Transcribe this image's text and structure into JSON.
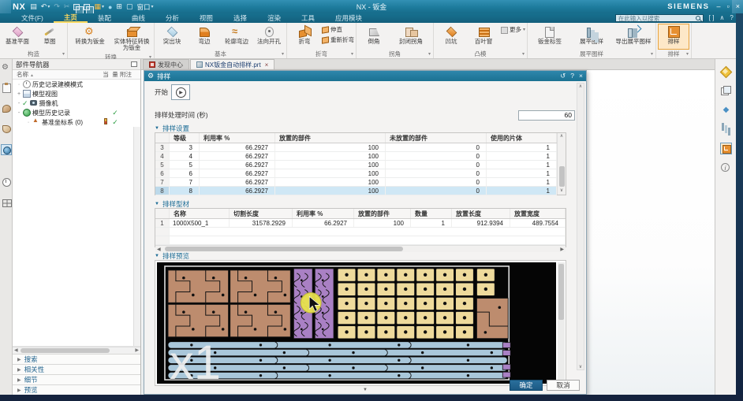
{
  "titlebar": {
    "app": "NX",
    "title": "NX - 钣金",
    "brand": "SIEMENS",
    "quick_icons": [
      {
        "name": "save-icon",
        "glyph": "▤"
      },
      {
        "name": "undo-icon",
        "glyph": "↶",
        "caret": true
      },
      {
        "name": "redo-icon",
        "glyph": "↷",
        "dim": true
      },
      {
        "name": "cut-icon",
        "glyph": "✂",
        "dim": true
      },
      {
        "name": "copy-icon",
        "shape": "copy"
      },
      {
        "name": "paste-icon",
        "shape": "copy"
      },
      {
        "name": "window-orange-icon",
        "glyph": "▦",
        "accent": true,
        "caret": true
      },
      {
        "name": "mic-icon",
        "glyph": "●",
        "blue": true
      },
      {
        "name": "touch-icon",
        "glyph": "⊞"
      },
      {
        "name": "layout-icon",
        "glyph": "▢"
      },
      {
        "name": "window-menu",
        "glyph": "窗口",
        "text": true,
        "caret": true
      }
    ],
    "window_controls": [
      {
        "name": "minimize-button",
        "glyph": "–"
      },
      {
        "name": "restore-button",
        "glyph": "▫"
      },
      {
        "name": "close-button",
        "glyph": "×"
      }
    ]
  },
  "menu": {
    "items": [
      "文件(F)",
      "主页",
      "装配",
      "曲线",
      "分析",
      "视图",
      "选择",
      "渲染",
      "工具",
      "应用模块"
    ],
    "active_index": 1,
    "search_placeholder": "在此输入以搜索",
    "right_icons": [
      {
        "name": "command-finder-icon",
        "glyph": "[ ]"
      },
      {
        "name": "minimize-ribbon-icon",
        "glyph": "∧"
      },
      {
        "name": "help-icon",
        "glyph": "?"
      },
      {
        "name": "alert-icon",
        "glyph": "!"
      }
    ]
  },
  "ribbon": {
    "groups": [
      {
        "label": "构造",
        "items": [
          {
            "label": "基准平面",
            "icon": "diamond-pink"
          },
          {
            "label": "草图",
            "icon": "pencil"
          }
        ]
      },
      {
        "label": "转换",
        "items": [
          {
            "label": "转换为钣金",
            "icon": "gear-orange",
            "wide": true
          },
          {
            "label": "实体特征转换为钣金",
            "icon": "cube-orange",
            "wide": true
          }
        ]
      },
      {
        "label": "基本",
        "items": [
          {
            "label": "突出块",
            "icon": "diamond-blue"
          },
          {
            "label": "弯边",
            "icon": "flange"
          },
          {
            "label": "轮廓弯边",
            "icon": "wave"
          },
          {
            "label": "法向开孔",
            "icon": "hole"
          }
        ]
      },
      {
        "label": "折弯",
        "items": [
          {
            "label": "折弯",
            "icon": "bend"
          },
          {
            "stack": [
              {
                "label": "伸直",
                "icon": "mini-orange"
              },
              {
                "label": "重新折弯",
                "icon": "mini-orange"
              }
            ]
          }
        ]
      },
      {
        "label": "拐角",
        "items": [
          {
            "label": "倒角",
            "icon": "chamfer"
          },
          {
            "label": "封闭拐角",
            "icon": "closecorner",
            "wide": true
          }
        ]
      },
      {
        "label": "凸模",
        "items": [
          {
            "label": "凹坑",
            "icon": "dimple"
          },
          {
            "label": "百叶窗",
            "icon": "louver"
          },
          {
            "stack": [
              {
                "label": "更多",
                "icon": "mini-more",
                "caret": true
              }
            ]
          }
        ]
      },
      {
        "label": "展平图样",
        "items": [
          {
            "label": "钣金标签",
            "icon": "tag",
            "wide": true
          },
          {
            "label": "展平图样",
            "icon": "flat",
            "wide": true
          },
          {
            "label": "导出展平图样",
            "icon": "export",
            "wide": true
          }
        ]
      },
      {
        "label": "排样",
        "items": [
          {
            "label": "排样",
            "icon": "nest",
            "active": true
          }
        ]
      }
    ]
  },
  "left_strip": {
    "icons": [
      {
        "name": "gear-icon",
        "cls": "ls-gear"
      },
      {
        "name": "clipboard-icon",
        "cls": "ls-clip"
      },
      {
        "name": "roles-icon",
        "cls": "ls-shell"
      },
      {
        "name": "part-shell-icon",
        "cls": "ls-shell2"
      },
      {
        "name": "web-browser-icon",
        "cls": "ls-globe",
        "active": true
      },
      {
        "name": "history-clock-icon",
        "cls": "ls-clock"
      },
      {
        "name": "template-grid-icon",
        "cls": "ls-grid"
      }
    ]
  },
  "navigator": {
    "title": "部件导航器",
    "columns": [
      "名称",
      "当",
      "量",
      "附注"
    ],
    "rows": [
      {
        "exp": "",
        "icon": "clock",
        "label": "历史记录建模模式",
        "c1": "",
        "c2": ""
      },
      {
        "exp": "+",
        "icon": "views",
        "label": "模型视图",
        "c1": "",
        "c2": ""
      },
      {
        "exp": "-",
        "pre": "check",
        "icon": "camera",
        "label": "摄像机",
        "c1": "",
        "c2": ""
      },
      {
        "exp": "-",
        "icon": "history",
        "label": "模型历史记录",
        "c1": "",
        "c2": "check"
      },
      {
        "exp": "",
        "indent": 1,
        "icon": "csys",
        "label": "基准坐标系 (0)",
        "c1": "badge",
        "c2": "check"
      }
    ],
    "sections": [
      "搜索",
      "相关性",
      "细节",
      "预览"
    ]
  },
  "tabs": [
    {
      "label": "发现中心",
      "icon": "discover",
      "active": false
    },
    {
      "label": "NX钣金自动排样.prt",
      "icon": "part",
      "active": true,
      "close": "×"
    }
  ],
  "dialog": {
    "title": "排样",
    "header_icons": [
      {
        "name": "reset-button",
        "glyph": "↺"
      },
      {
        "name": "help-button",
        "glyph": "?"
      },
      {
        "name": "close-button",
        "glyph": "×"
      }
    ],
    "start_label": "开始",
    "time_label": "排样处理时间 (秒)",
    "time_value": "60",
    "settings": {
      "title": "排样设置",
      "columns": [
        "等级",
        "利用率 %",
        "放置的部件",
        "未放置的部件",
        "使用的片体"
      ],
      "rows": [
        {
          "n": "3",
          "v": [
            "3",
            "66.2927",
            "100",
            "0",
            "1"
          ]
        },
        {
          "n": "4",
          "v": [
            "4",
            "66.2927",
            "100",
            "0",
            "1"
          ]
        },
        {
          "n": "5",
          "v": [
            "5",
            "66.2927",
            "100",
            "0",
            "1"
          ]
        },
        {
          "n": "6",
          "v": [
            "6",
            "66.2927",
            "100",
            "0",
            "1"
          ]
        },
        {
          "n": "7",
          "v": [
            "7",
            "66.2927",
            "100",
            "0",
            "1"
          ]
        },
        {
          "n": "8",
          "v": [
            "8",
            "66.2927",
            "100",
            "0",
            "1"
          ],
          "selected": true
        }
      ]
    },
    "profiles": {
      "title": "排样型材",
      "columns": [
        "名称",
        "切割长度",
        "利用率 %",
        "放置的部件",
        "数量",
        "放置长度",
        "放置宽度"
      ],
      "rows": [
        {
          "n": "1",
          "v": [
            "1000X500_1",
            "31578.2929",
            "66.2927",
            "100",
            "1",
            "912.9394",
            "489.7554"
          ]
        }
      ]
    },
    "preview": {
      "title": "排样预览",
      "overlay": "x1"
    },
    "ok_label": "确定",
    "cancel_label": "取消"
  },
  "right_strip": {
    "icons": [
      {
        "name": "assembly-star-icon",
        "cls": "rs-star"
      },
      {
        "name": "windows-copy-icon",
        "cls": "rs-win"
      },
      {
        "name": "datum-diamond-icon",
        "cls": "rs-diamond",
        "glyph": "◆"
      },
      {
        "name": "chart-icon",
        "cls": "rs-chart"
      },
      {
        "name": "nesting-icon",
        "cls": "rs-nest",
        "active": true
      },
      {
        "name": "info-icon",
        "cls": "rs-info",
        "glyph": "i"
      }
    ]
  },
  "colors": {
    "titlebar": "#1d7b9c",
    "accent_yellow": "#ffd95e",
    "dialog_header": "#1c7495",
    "primary_button": "#1f608c",
    "selected_row": "#cfe7f5",
    "preview_tan": "#bd8c6e",
    "preview_yellow": "#eeda9c",
    "preview_blue": "#a9c7da",
    "preview_purple": "#a980c4"
  }
}
